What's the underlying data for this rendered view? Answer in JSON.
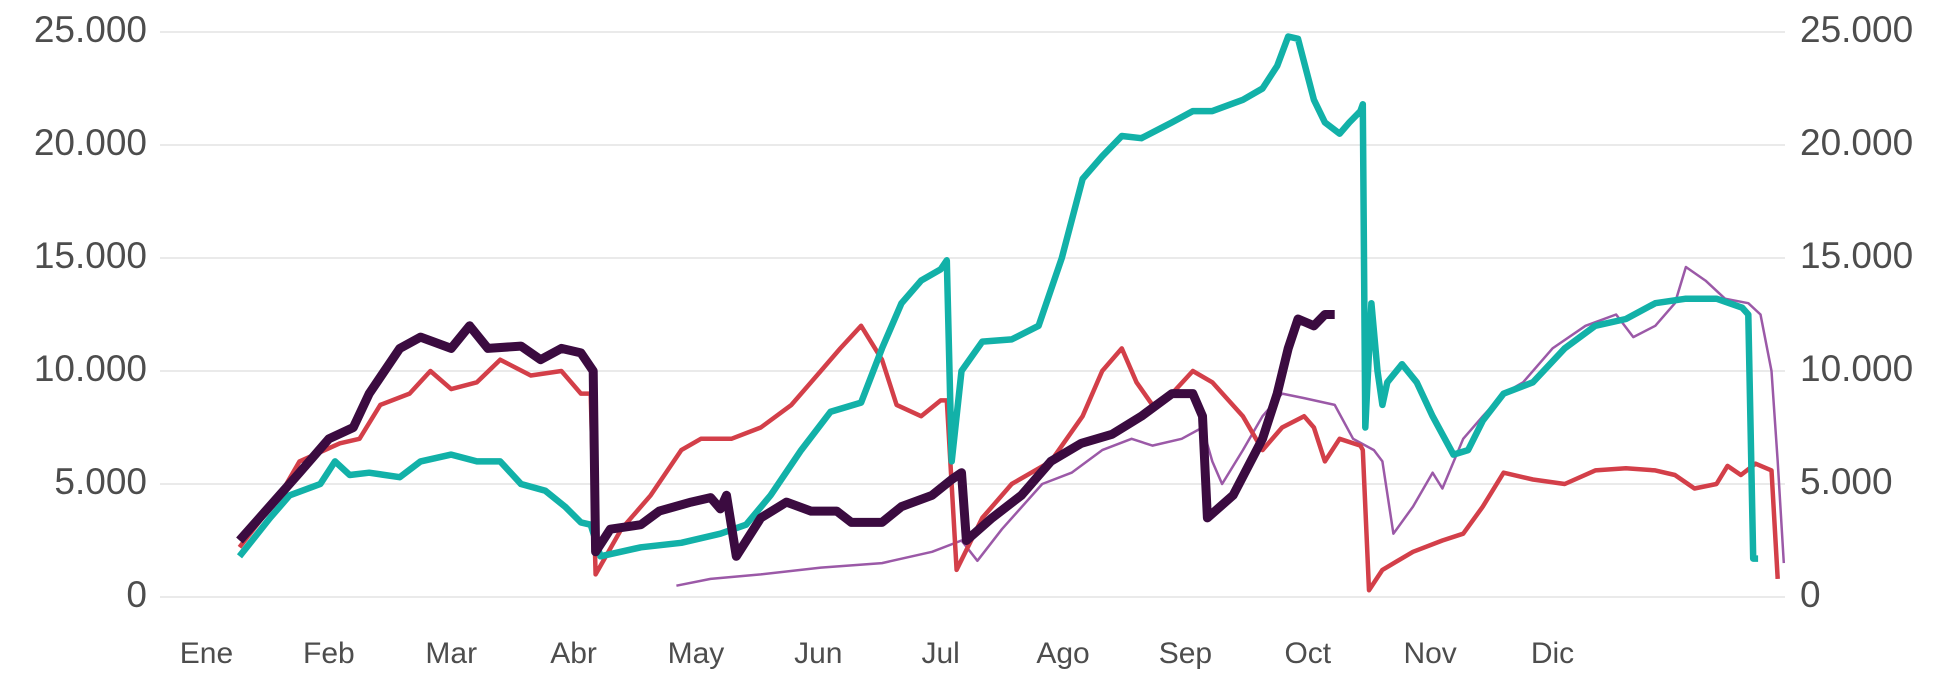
{
  "chart_data": {
    "type": "line",
    "xlim": [
      -0.38,
      12.9
    ],
    "xticks": [
      {
        "value": 0,
        "label": "Ene"
      },
      {
        "value": 1,
        "label": "Feb"
      },
      {
        "value": 2,
        "label": "Mar"
      },
      {
        "value": 3,
        "label": "Abr"
      },
      {
        "value": 4,
        "label": "May"
      },
      {
        "value": 5,
        "label": "Jun"
      },
      {
        "value": 6,
        "label": "Jul"
      },
      {
        "value": 7,
        "label": "Ago"
      },
      {
        "value": 8,
        "label": "Sep"
      },
      {
        "value": 9,
        "label": "Oct"
      },
      {
        "value": 10,
        "label": "Nov"
      },
      {
        "value": 11,
        "label": "Dic"
      }
    ],
    "ylim": [
      0,
      25000
    ],
    "yticks": [
      {
        "value": 0,
        "label": "0"
      },
      {
        "value": 5000,
        "label": "5.000"
      },
      {
        "value": 10000,
        "label": "10.000"
      },
      {
        "value": 15000,
        "label": "15.000"
      },
      {
        "value": 20000,
        "label": "20.000"
      },
      {
        "value": 25000,
        "label": "25.000"
      }
    ],
    "y2lim": [
      0,
      25000
    ],
    "y2ticks": [
      {
        "value": 0,
        "label": "0"
      },
      {
        "value": 5000,
        "label": "5.000"
      },
      {
        "value": 10000,
        "label": "10.000"
      },
      {
        "value": 15000,
        "label": "15.000"
      },
      {
        "value": 20000,
        "label": "20.000"
      },
      {
        "value": 25000,
        "label": "25.000"
      }
    ],
    "grid": true,
    "series": [
      {
        "color": "#9b59a7",
        "width": 2.5,
        "x": [
          3.84,
          4.12,
          4.53,
          5.02,
          5.52,
          5.93,
          6.17,
          6.3,
          6.5,
          6.83,
          7.07,
          7.32,
          7.56,
          7.73,
          7.97,
          8.14,
          8.22,
          8.3,
          8.47,
          8.63,
          8.79,
          8.97,
          9.22,
          9.37,
          9.54,
          9.61,
          9.7,
          9.86,
          10.02,
          10.1,
          10.27,
          10.43,
          10.6,
          10.76,
          11.0,
          11.27,
          11.52,
          11.66,
          11.84,
          12.0,
          12.09,
          12.25,
          12.41,
          12.6,
          12.7,
          12.79,
          12.84,
          12.89
        ],
        "values": [
          500,
          800,
          1000,
          1300,
          1500,
          2000,
          2500,
          1600,
          3000,
          5000,
          5500,
          6500,
          7000,
          6700,
          7000,
          7500,
          6000,
          5000,
          6500,
          8000,
          9000,
          8800,
          8500,
          7000,
          6500,
          6000,
          2800,
          4000,
          5500,
          4800,
          7000,
          8000,
          9000,
          9500,
          11000,
          12000,
          12500,
          11500,
          12000,
          13000,
          14600,
          14000,
          13200,
          13000,
          12500,
          10000,
          6000,
          1500
        ]
      },
      {
        "color": "#d33f49",
        "width": 4.5,
        "x": [
          0.27,
          0.6,
          0.76,
          1.09,
          1.25,
          1.42,
          1.66,
          1.83,
          2.0,
          2.21,
          2.4,
          2.65,
          2.9,
          3.06,
          3.14,
          3.18,
          3.39,
          3.63,
          3.88,
          4.04,
          4.29,
          4.53,
          4.78,
          5.02,
          5.18,
          5.35,
          5.52,
          5.64,
          5.84,
          6.0,
          6.05,
          6.13,
          6.34,
          6.58,
          6.9,
          7.16,
          7.32,
          7.48,
          7.6,
          7.73,
          7.89,
          8.06,
          8.22,
          8.47,
          8.63,
          8.79,
          8.97,
          9.05,
          9.14,
          9.26,
          9.43,
          9.45,
          9.5,
          9.61,
          9.86,
          10.1,
          10.27,
          10.43,
          10.6,
          10.84,
          11.1,
          11.35,
          11.6,
          11.84,
          12.0,
          12.16,
          12.34,
          12.43,
          12.54,
          12.66,
          12.79,
          12.84
        ],
        "values": [
          2200,
          4500,
          6000,
          6800,
          7000,
          8500,
          9000,
          10000,
          9200,
          9500,
          10500,
          9800,
          10000,
          9000,
          9000,
          1000,
          3000,
          4500,
          6500,
          7000,
          7000,
          7500,
          8500,
          10000,
          11000,
          12000,
          10500,
          8500,
          8000,
          8700,
          8700,
          1200,
          3500,
          5000,
          6000,
          8000,
          10000,
          11000,
          9500,
          8500,
          9000,
          10000,
          9500,
          8000,
          6500,
          7500,
          8000,
          7500,
          6000,
          7000,
          6700,
          6500,
          300,
          1200,
          2000,
          2500,
          2800,
          4000,
          5500,
          5200,
          5000,
          5600,
          5700,
          5600,
          5400,
          4800,
          5000,
          5800,
          5400,
          5900,
          5600,
          800
        ]
      },
      {
        "color": "#12b1a8",
        "width": 6.5,
        "x": [
          0.27,
          0.52,
          0.68,
          0.93,
          1.05,
          1.17,
          1.33,
          1.58,
          1.75,
          2.0,
          2.21,
          2.4,
          2.57,
          2.77,
          2.93,
          3.06,
          3.14,
          3.22,
          3.55,
          3.88,
          4.2,
          4.41,
          4.61,
          4.86,
          5.1,
          5.35,
          5.52,
          5.68,
          5.84,
          6.0,
          6.05,
          6.09,
          6.17,
          6.34,
          6.58,
          6.8,
          6.99,
          7.16,
          7.32,
          7.48,
          7.64,
          7.89,
          8.06,
          8.22,
          8.47,
          8.63,
          8.75,
          8.84,
          8.92,
          9.05,
          9.14,
          9.26,
          9.34,
          9.43,
          9.45,
          9.47,
          9.52,
          9.57,
          9.61,
          9.65,
          9.77,
          9.89,
          10.02,
          10.19,
          10.31,
          10.43,
          10.6,
          10.84,
          11.1,
          11.35,
          11.6,
          11.84,
          12.09,
          12.34,
          12.55,
          12.6,
          12.64,
          12.68
        ],
        "values": [
          1800,
          3500,
          4500,
          5000,
          6000,
          5400,
          5500,
          5300,
          6000,
          6300,
          6000,
          6000,
          5000,
          4700,
          4000,
          3300,
          3200,
          1800,
          2200,
          2400,
          2800,
          3200,
          4500,
          6500,
          8200,
          8600,
          11000,
          13000,
          14000,
          14500,
          14900,
          6000,
          10000,
          11300,
          11400,
          12000,
          15000,
          18500,
          19500,
          20400,
          20300,
          21000,
          21500,
          21500,
          22000,
          22500,
          23500,
          24800,
          24700,
          22000,
          21000,
          20500,
          21000,
          21500,
          21800,
          7500,
          13000,
          10000,
          8500,
          9500,
          10300,
          9500,
          8000,
          6300,
          6500,
          7800,
          9000,
          9500,
          11000,
          12000,
          12300,
          13000,
          13200,
          13200,
          12800,
          12500,
          1700,
          1700
        ]
      },
      {
        "color": "#3b0b40",
        "width": 9,
        "x": [
          0.27,
          0.76,
          1.0,
          1.2,
          1.33,
          1.58,
          1.75,
          2.0,
          2.15,
          2.3,
          2.57,
          2.73,
          2.9,
          3.06,
          3.16,
          3.18,
          3.3,
          3.55,
          3.7,
          3.96,
          4.12,
          4.2,
          4.25,
          4.33,
          4.53,
          4.74,
          4.94,
          5.15,
          5.27,
          5.52,
          5.68,
          5.93,
          6.09,
          6.17,
          6.21,
          6.42,
          6.66,
          6.9,
          7.15,
          7.4,
          7.64,
          7.89,
          8.06,
          8.14,
          8.18,
          8.39,
          8.63,
          8.75,
          8.84,
          8.92,
          9.05,
          9.14,
          9.22
        ],
        "values": [
          2500,
          5500,
          7000,
          7500,
          9000,
          11000,
          11500,
          11000,
          12000,
          11000,
          11100,
          10500,
          11000,
          10800,
          10000,
          2000,
          3000,
          3200,
          3800,
          4200,
          4400,
          3900,
          4500,
          1800,
          3500,
          4200,
          3800,
          3800,
          3300,
          3300,
          4000,
          4500,
          5200,
          5500,
          2500,
          3500,
          4500,
          6000,
          6800,
          7200,
          8000,
          9000,
          9000,
          8000,
          3500,
          4500,
          7000,
          9000,
          11000,
          12300,
          12000,
          12500,
          12500
        ]
      }
    ]
  }
}
